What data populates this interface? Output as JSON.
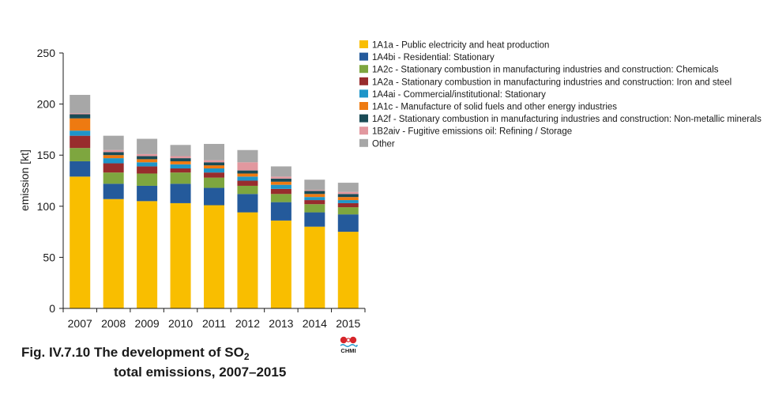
{
  "figure": {
    "caption_prefix": "Fig. IV.7.10  The development of SO",
    "caption_sub": "2",
    "caption_line2": "total emissions, 2007–2015",
    "logo_text": "CHMI"
  },
  "chart_data": {
    "type": "bar",
    "stacked": true,
    "categories": [
      "2007",
      "2008",
      "2009",
      "2010",
      "2011",
      "2012",
      "2013",
      "2014",
      "2015"
    ],
    "ylabel": "emission [kt]",
    "ylim": [
      0,
      250
    ],
    "yticks": [
      0,
      50,
      100,
      150,
      200,
      250
    ],
    "grid": false,
    "legend_position": "right",
    "series": [
      {
        "name": "1A1a - Public electricity and heat production",
        "color": "#F9BE00",
        "values": [
          129,
          107,
          105,
          103,
          101,
          94,
          86,
          80,
          75
        ]
      },
      {
        "name": "1A4bi - Residential: Stationary",
        "color": "#245A9B",
        "values": [
          15,
          15,
          15,
          19,
          17,
          18,
          18,
          14,
          17
        ]
      },
      {
        "name": "1A2c - Stationary combustion in manufacturing industries and construction: Chemicals",
        "color": "#7EA63F",
        "values": [
          13,
          11,
          12,
          11,
          10,
          8,
          8,
          8,
          7
        ]
      },
      {
        "name": "1A2a - Stationary combustion in manufacturing industries and construction: Iron and steel",
        "color": "#982C2D",
        "values": [
          12,
          9,
          7,
          4,
          5,
          5,
          5,
          4,
          4
        ]
      },
      {
        "name": "1A4ai -  Commercial/institutional: Stationary",
        "color": "#1E95C9",
        "values": [
          5,
          5,
          4,
          4,
          4,
          4,
          4,
          3,
          3
        ]
      },
      {
        "name": "1A1c - Manufacture of solid fuels and other energy industries",
        "color": "#EE7A11",
        "values": [
          12,
          3,
          3,
          3,
          3,
          3,
          3,
          3,
          3
        ]
      },
      {
        "name": "1A2f - Stationary combustion in manufacturing industries and construction: Non-metallic minerals",
        "color": "#1A4B55",
        "values": [
          4,
          3,
          3,
          3,
          3,
          3,
          3,
          3,
          3
        ]
      },
      {
        "name": "1B2aiv - Fugitive emissions oil: Refining / Storage",
        "color": "#E2989F",
        "values": [
          1,
          2,
          2,
          2,
          2,
          8,
          2,
          1,
          2
        ]
      },
      {
        "name": "Other",
        "color": "#A7A7A7",
        "values": [
          18,
          14,
          15,
          11,
          16,
          12,
          10,
          10,
          9
        ]
      }
    ]
  }
}
